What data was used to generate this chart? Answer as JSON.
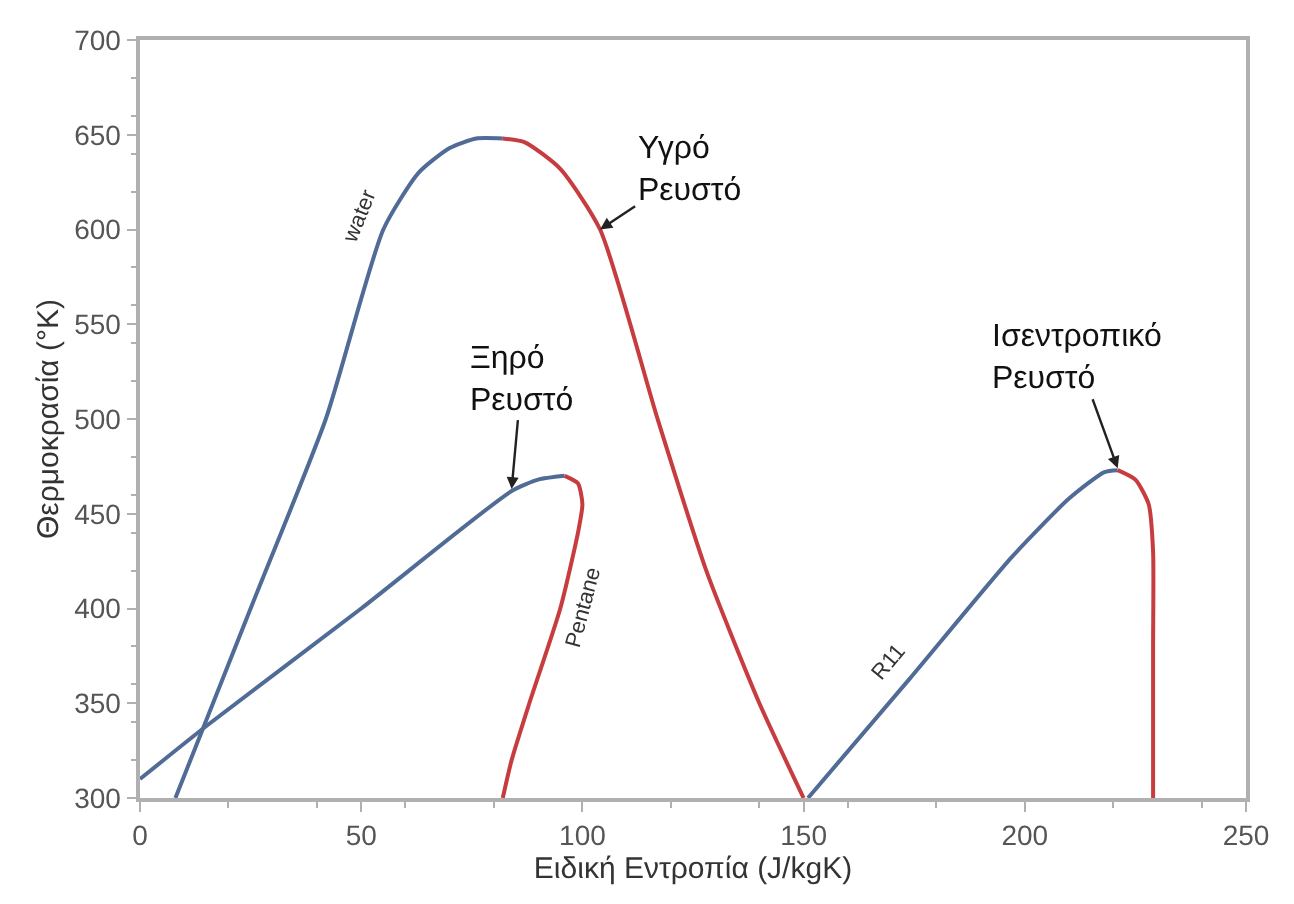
{
  "chart_data": {
    "type": "line",
    "xlabel": "Ειδική Εντροπία (J/kgK)",
    "ylabel": "Θερμοκρασία (°K)",
    "xlim": [
      0,
      250
    ],
    "xticks": [
      0,
      50,
      100,
      150,
      200,
      250
    ],
    "ylim": [
      300,
      700
    ],
    "yticks": [
      300,
      350,
      400,
      450,
      500,
      550,
      600,
      650,
      700
    ],
    "legend": false,
    "marker": "none",
    "line_style": "solid",
    "series": [
      {
        "name": "water",
        "color": "#4f6b96",
        "x": [
          8,
          25,
          42,
          55,
          63,
          70,
          76,
          82
        ],
        "values": [
          300,
          400,
          500,
          600,
          630,
          643,
          648,
          648
        ]
      },
      {
        "color": "#c63c3f",
        "x": [
          82,
          87,
          95,
          104,
          117,
          128,
          140,
          150
        ],
        "values": [
          648,
          646,
          632,
          600,
          500,
          420,
          350,
          300
        ]
      },
      {
        "color": "#4f6b96",
        "x": [
          0,
          15,
          50,
          84,
          90,
          96
        ],
        "values": [
          310,
          338,
          400,
          462,
          468,
          470
        ]
      },
      {
        "name": "Pentane",
        "color": "#c63c3f",
        "x": [
          96,
          99,
          100,
          99,
          95,
          88,
          84,
          82
        ],
        "values": [
          470,
          466,
          455,
          440,
          400,
          350,
          320,
          300
        ]
      },
      {
        "name": "R11",
        "color": "#4f6b96",
        "x": [
          151,
          174,
          197,
          210,
          218,
          221
        ],
        "values": [
          300,
          363,
          427,
          458,
          472,
          473
        ]
      },
      {
        "color": "#c63c3f",
        "x": [
          221,
          225,
          228,
          229,
          229,
          229
        ],
        "values": [
          473,
          468,
          455,
          430,
          380,
          300
        ]
      }
    ],
    "annotations": [
      {
        "text": "Υγρό\nΡευστό",
        "x": 104,
        "y": 600
      },
      {
        "text": "Ξηρό\nΡευστό",
        "x": 84,
        "y": 463
      },
      {
        "text": "Ισεντροπικό\nΡευστό",
        "x": 221,
        "y": 474
      }
    ]
  }
}
